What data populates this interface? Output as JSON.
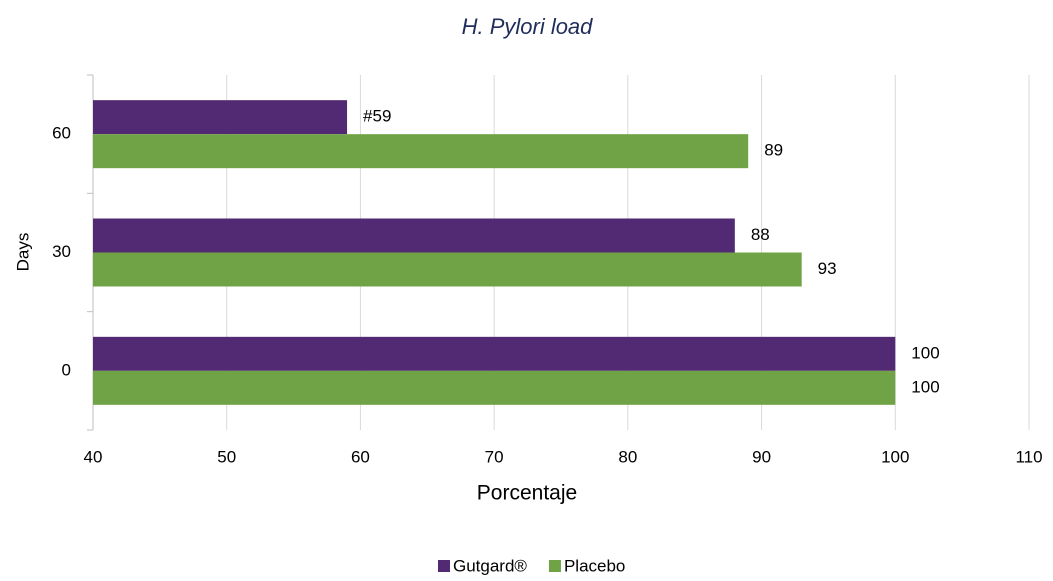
{
  "chart_data": {
    "type": "barh",
    "title": "H. Pylori load",
    "xlabel": "Porcentaje",
    "ylabel": "Days",
    "categories": [
      "0",
      "30",
      "60"
    ],
    "series": [
      {
        "name": "Gutgard®",
        "color": "#522a73",
        "values": [
          100,
          88,
          59
        ],
        "value_labels": [
          "100",
          "88",
          "#59"
        ]
      },
      {
        "name": "Placebo",
        "color": "#70a346",
        "values": [
          100,
          93,
          89
        ]
      }
    ],
    "xlim": [
      40,
      110
    ],
    "xticks": [
      40,
      50,
      60,
      70,
      80,
      90,
      100,
      110
    ],
    "grid": true,
    "legend": "bottom"
  }
}
